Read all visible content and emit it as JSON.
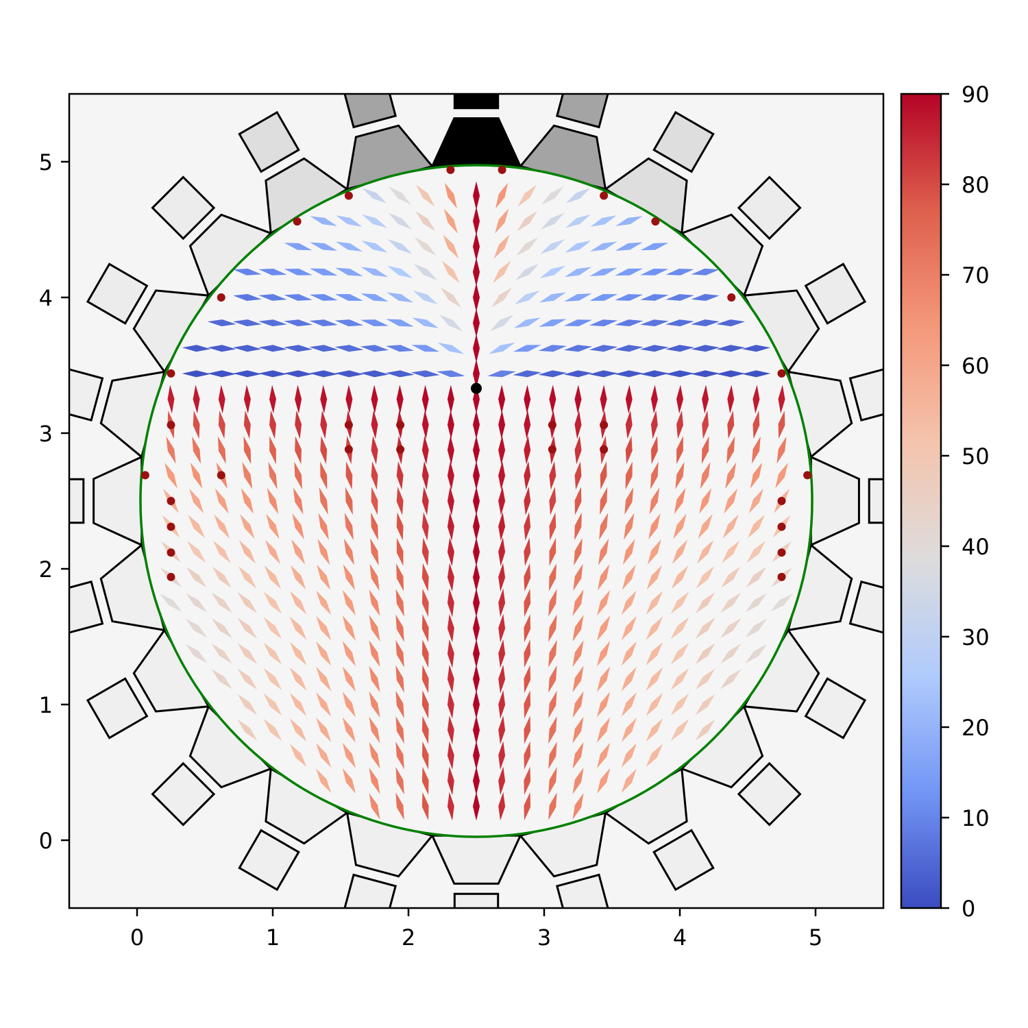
{
  "chart_data": {
    "type": "quiver",
    "title": "",
    "xlabel": "",
    "ylabel": "",
    "xlim": [
      -0.5,
      5.5
    ],
    "ylim": [
      -0.5,
      5.5
    ],
    "x_ticks": [
      "0",
      "1",
      "2",
      "3",
      "4",
      "5"
    ],
    "y_ticks": [
      "0",
      "1",
      "2",
      "3",
      "4",
      "5"
    ],
    "grid": false,
    "background": "#f5f5f5",
    "domain": {
      "center": [
        2.5,
        2.5
      ],
      "radius": 2.475,
      "edge_color": "#008000"
    },
    "boundary_segments": 24,
    "central_defect": {
      "x": 2.5,
      "y": 3.33,
      "color": "#000000"
    },
    "point_defects": {
      "color": "#9b1010",
      "points": [
        [
          2.31,
          4.94
        ],
        [
          2.69,
          4.94
        ],
        [
          1.56,
          4.75
        ],
        [
          3.44,
          4.75
        ],
        [
          1.18,
          4.56
        ],
        [
          3.82,
          4.56
        ],
        [
          0.62,
          4.0
        ],
        [
          4.38,
          4.0
        ],
        [
          0.25,
          3.44
        ],
        [
          4.75,
          3.44
        ],
        [
          0.25,
          3.06
        ],
        [
          1.56,
          3.06
        ],
        [
          3.06,
          3.06
        ],
        [
          3.44,
          3.06
        ],
        [
          1.56,
          2.88
        ],
        [
          1.94,
          2.88
        ],
        [
          3.06,
          2.88
        ],
        [
          3.44,
          2.88
        ],
        [
          1.94,
          3.06
        ],
        [
          0.06,
          2.69
        ],
        [
          0.62,
          2.69
        ],
        [
          4.94,
          2.69
        ],
        [
          0.25,
          2.5
        ],
        [
          4.75,
          2.5
        ],
        [
          0.25,
          2.31
        ],
        [
          4.75,
          2.31
        ],
        [
          0.25,
          2.12
        ],
        [
          4.75,
          2.12
        ],
        [
          0.25,
          1.94
        ],
        [
          4.75,
          1.94
        ]
      ]
    },
    "director_field": {
      "grid_spacing": 0.1875,
      "value_meaning": "angle from vertical (degrees)",
      "symmetry": "mirror about x = 2.5"
    },
    "colorbar": {
      "colormap": "coolwarm",
      "range": [
        0,
        90
      ],
      "ticks": [
        "0",
        "10",
        "20",
        "30",
        "40",
        "50",
        "60",
        "70",
        "80",
        "90"
      ],
      "colors": [
        "#3b4cc0",
        "#7396f5",
        "#b0cbfc",
        "#dddcdc",
        "#f4c4ad",
        "#f4987a",
        "#de604d",
        "#b40426"
      ]
    }
  }
}
